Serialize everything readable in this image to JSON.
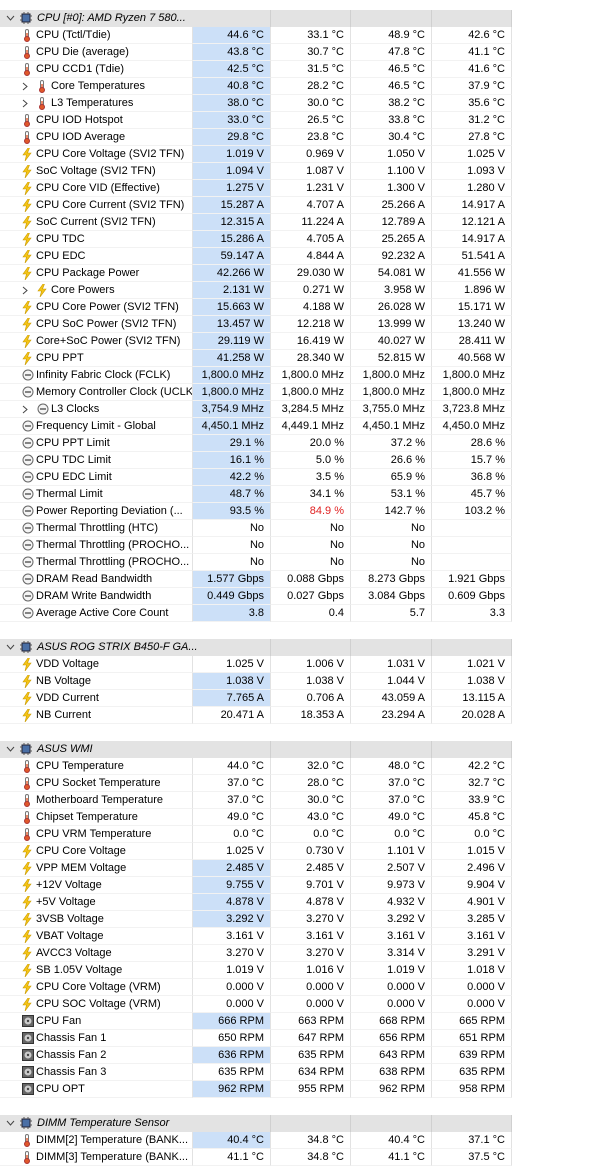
{
  "groups": [
    {
      "title": "CPU [#0]: AMD Ryzen 7 580...",
      "icon": "chip",
      "rows": [
        {
          "name": "CPU (Tctl/Tdie)",
          "icon": "temp",
          "values": [
            "44.6 °C",
            "33.1 °C",
            "48.9 °C",
            "42.6 °C"
          ],
          "selected": true
        },
        {
          "name": "CPU Die (average)",
          "icon": "temp",
          "values": [
            "43.8 °C",
            "30.7 °C",
            "47.8 °C",
            "41.1 °C"
          ],
          "selected": true
        },
        {
          "name": "CPU CCD1 (Tdie)",
          "icon": "temp",
          "values": [
            "42.5 °C",
            "31.5 °C",
            "46.5 °C",
            "41.6 °C"
          ],
          "selected": true
        },
        {
          "name": "Core Temperatures",
          "icon": "temp",
          "expandable": true,
          "values": [
            "40.8 °C",
            "28.2 °C",
            "46.5 °C",
            "37.9 °C"
          ],
          "selected": true
        },
        {
          "name": "L3 Temperatures",
          "icon": "temp",
          "expandable": true,
          "values": [
            "38.0 °C",
            "30.0 °C",
            "38.2 °C",
            "35.6 °C"
          ],
          "selected": true
        },
        {
          "name": "CPU IOD Hotspot",
          "icon": "temp",
          "values": [
            "33.0 °C",
            "26.5 °C",
            "33.8 °C",
            "31.2 °C"
          ],
          "selected": true
        },
        {
          "name": "CPU IOD Average",
          "icon": "temp",
          "values": [
            "29.8 °C",
            "23.8 °C",
            "30.4 °C",
            "27.8 °C"
          ],
          "selected": true
        },
        {
          "name": "CPU Core Voltage (SVI2 TFN)",
          "icon": "volt",
          "values": [
            "1.019 V",
            "0.969 V",
            "1.050 V",
            "1.025 V"
          ],
          "selected": true
        },
        {
          "name": "SoC Voltage (SVI2 TFN)",
          "icon": "volt",
          "values": [
            "1.094 V",
            "1.087 V",
            "1.100 V",
            "1.093 V"
          ],
          "selected": true
        },
        {
          "name": "CPU Core VID (Effective)",
          "icon": "volt",
          "values": [
            "1.275 V",
            "1.231 V",
            "1.300 V",
            "1.280 V"
          ],
          "selected": true
        },
        {
          "name": "CPU Core Current (SVI2 TFN)",
          "icon": "volt",
          "values": [
            "15.287 A",
            "4.707 A",
            "25.266 A",
            "14.917 A"
          ],
          "selected": true
        },
        {
          "name": "SoC Current (SVI2 TFN)",
          "icon": "volt",
          "values": [
            "12.315 A",
            "11.224 A",
            "12.789 A",
            "12.121 A"
          ],
          "selected": true
        },
        {
          "name": "CPU TDC",
          "icon": "volt",
          "values": [
            "15.286 A",
            "4.705 A",
            "25.265 A",
            "14.917 A"
          ],
          "selected": true
        },
        {
          "name": "CPU EDC",
          "icon": "volt",
          "values": [
            "59.147 A",
            "4.844 A",
            "92.232 A",
            "51.541 A"
          ],
          "selected": true
        },
        {
          "name": "CPU Package Power",
          "icon": "volt",
          "values": [
            "42.266 W",
            "29.030 W",
            "54.081 W",
            "41.556 W"
          ],
          "selected": true
        },
        {
          "name": "Core Powers",
          "icon": "volt",
          "expandable": true,
          "values": [
            "2.131 W",
            "0.271 W",
            "3.958 W",
            "1.896 W"
          ],
          "selected": true
        },
        {
          "name": "CPU Core Power (SVI2 TFN)",
          "icon": "volt",
          "values": [
            "15.663 W",
            "4.188 W",
            "26.028 W",
            "15.171 W"
          ],
          "selected": true
        },
        {
          "name": "CPU SoC Power (SVI2 TFN)",
          "icon": "volt",
          "values": [
            "13.457 W",
            "12.218 W",
            "13.999 W",
            "13.240 W"
          ],
          "selected": true
        },
        {
          "name": "Core+SoC Power (SVI2 TFN)",
          "icon": "volt",
          "values": [
            "29.119 W",
            "16.419 W",
            "40.027 W",
            "28.411 W"
          ],
          "selected": true
        },
        {
          "name": "CPU PPT",
          "icon": "volt",
          "values": [
            "41.258 W",
            "28.340 W",
            "52.815 W",
            "40.568 W"
          ],
          "selected": true
        },
        {
          "name": "Infinity Fabric Clock (FCLK)",
          "icon": "clock",
          "values": [
            "1,800.0 MHz",
            "1,800.0 MHz",
            "1,800.0 MHz",
            "1,800.0 MHz"
          ],
          "selected": true
        },
        {
          "name": "Memory Controller Clock (UCLK)",
          "icon": "clock",
          "values": [
            "1,800.0 MHz",
            "1,800.0 MHz",
            "1,800.0 MHz",
            "1,800.0 MHz"
          ],
          "selected": true
        },
        {
          "name": "L3 Clocks",
          "icon": "clock",
          "expandable": true,
          "values": [
            "3,754.9 MHz",
            "3,284.5 MHz",
            "3,755.0 MHz",
            "3,723.8 MHz"
          ],
          "selected": true
        },
        {
          "name": "Frequency Limit - Global",
          "icon": "clock",
          "values": [
            "4,450.1 MHz",
            "4,449.1 MHz",
            "4,450.1 MHz",
            "4,450.0 MHz"
          ],
          "selected": true
        },
        {
          "name": "CPU PPT Limit",
          "icon": "clock",
          "values": [
            "29.1 %",
            "20.0 %",
            "37.2 %",
            "28.6 %"
          ],
          "selected": true
        },
        {
          "name": "CPU TDC Limit",
          "icon": "clock",
          "values": [
            "16.1 %",
            "5.0 %",
            "26.6 %",
            "15.7 %"
          ],
          "selected": true
        },
        {
          "name": "CPU EDC Limit",
          "icon": "clock",
          "values": [
            "42.2 %",
            "3.5 %",
            "65.9 %",
            "36.8 %"
          ],
          "selected": true
        },
        {
          "name": "Thermal Limit",
          "icon": "clock",
          "values": [
            "48.7 %",
            "34.1 %",
            "53.1 %",
            "45.7 %"
          ],
          "selected": true
        },
        {
          "name": "Power Reporting Deviation (...",
          "icon": "clock",
          "values": [
            "93.5 %",
            "84.9 %",
            "142.7 %",
            "103.2 %"
          ],
          "value_colors": [
            null,
            "#e02020",
            null,
            null
          ],
          "selected": true
        },
        {
          "name": "Thermal Throttling (HTC)",
          "icon": "clock",
          "values": [
            "No",
            "No",
            "No"
          ]
        },
        {
          "name": "Thermal Throttling (PROCHO...",
          "icon": "clock",
          "values": [
            "No",
            "No",
            "No"
          ]
        },
        {
          "name": "Thermal Throttling (PROCHO...",
          "icon": "clock",
          "values": [
            "No",
            "No",
            "No"
          ]
        },
        {
          "name": "DRAM Read Bandwidth",
          "icon": "clock",
          "values": [
            "1.577 Gbps",
            "0.088 Gbps",
            "8.273 Gbps",
            "1.921 Gbps"
          ],
          "selected": true
        },
        {
          "name": "DRAM Write Bandwidth",
          "icon": "clock",
          "values": [
            "0.449 Gbps",
            "0.027 Gbps",
            "3.084 Gbps",
            "0.609 Gbps"
          ],
          "selected": true
        },
        {
          "name": "Average Active Core Count",
          "icon": "clock",
          "values": [
            "3.8",
            "0.4",
            "5.7",
            "3.3"
          ],
          "selected": true
        }
      ]
    },
    {
      "title": "ASUS ROG STRIX B450-F GA...",
      "icon": "chip",
      "rows": [
        {
          "name": "VDD Voltage",
          "icon": "volt",
          "values": [
            "1.025 V",
            "1.006 V",
            "1.031 V",
            "1.021 V"
          ]
        },
        {
          "name": "NB Voltage",
          "icon": "volt",
          "values": [
            "1.038 V",
            "1.038 V",
            "1.044 V",
            "1.038 V"
          ],
          "selected": true
        },
        {
          "name": "VDD Current",
          "icon": "volt",
          "values": [
            "7.765 A",
            "0.706 A",
            "43.059 A",
            "13.115 A"
          ],
          "selected": true
        },
        {
          "name": "NB Current",
          "icon": "volt",
          "values": [
            "20.471 A",
            "18.353 A",
            "23.294 A",
            "20.028 A"
          ]
        }
      ]
    },
    {
      "title": "ASUS WMI",
      "icon": "chip",
      "rows": [
        {
          "name": "CPU Temperature",
          "icon": "temp",
          "values": [
            "44.0 °C",
            "32.0 °C",
            "48.0 °C",
            "42.2 °C"
          ]
        },
        {
          "name": "CPU Socket Temperature",
          "icon": "temp",
          "values": [
            "37.0 °C",
            "28.0 °C",
            "37.0 °C",
            "32.7 °C"
          ]
        },
        {
          "name": "Motherboard Temperature",
          "icon": "temp",
          "values": [
            "37.0 °C",
            "30.0 °C",
            "37.0 °C",
            "33.9 °C"
          ]
        },
        {
          "name": "Chipset Temperature",
          "icon": "temp",
          "values": [
            "49.0 °C",
            "43.0 °C",
            "49.0 °C",
            "45.8 °C"
          ]
        },
        {
          "name": "CPU VRM Temperature",
          "icon": "temp",
          "values": [
            "0.0 °C",
            "0.0 °C",
            "0.0 °C",
            "0.0 °C"
          ]
        },
        {
          "name": "CPU Core Voltage",
          "icon": "volt",
          "values": [
            "1.025 V",
            "0.730 V",
            "1.101 V",
            "1.015 V"
          ]
        },
        {
          "name": "VPP MEM Voltage",
          "icon": "volt",
          "values": [
            "2.485 V",
            "2.485 V",
            "2.507 V",
            "2.496 V"
          ],
          "selected": true
        },
        {
          "name": "+12V Voltage",
          "icon": "volt",
          "values": [
            "9.755 V",
            "9.701 V",
            "9.973 V",
            "9.904 V"
          ],
          "selected": true
        },
        {
          "name": "+5V Voltage",
          "icon": "volt",
          "values": [
            "4.878 V",
            "4.878 V",
            "4.932 V",
            "4.901 V"
          ],
          "selected": true
        },
        {
          "name": "3VSB Voltage",
          "icon": "volt",
          "values": [
            "3.292 V",
            "3.270 V",
            "3.292 V",
            "3.285 V"
          ],
          "selected": true
        },
        {
          "name": "VBAT Voltage",
          "icon": "volt",
          "values": [
            "3.161 V",
            "3.161 V",
            "3.161 V",
            "3.161 V"
          ]
        },
        {
          "name": "AVCC3 Voltage",
          "icon": "volt",
          "values": [
            "3.270 V",
            "3.270 V",
            "3.314 V",
            "3.291 V"
          ]
        },
        {
          "name": "SB 1.05V Voltage",
          "icon": "volt",
          "values": [
            "1.019 V",
            "1.016 V",
            "1.019 V",
            "1.018 V"
          ]
        },
        {
          "name": "CPU Core Voltage (VRM)",
          "icon": "volt",
          "values": [
            "0.000 V",
            "0.000 V",
            "0.000 V",
            "0.000 V"
          ]
        },
        {
          "name": "CPU SOC Voltage (VRM)",
          "icon": "volt",
          "values": [
            "0.000 V",
            "0.000 V",
            "0.000 V",
            "0.000 V"
          ]
        },
        {
          "name": "CPU Fan",
          "icon": "fan",
          "values": [
            "666 RPM",
            "663 RPM",
            "668 RPM",
            "665 RPM"
          ],
          "selected": true
        },
        {
          "name": "Chassis Fan 1",
          "icon": "fan",
          "values": [
            "650 RPM",
            "647 RPM",
            "656 RPM",
            "651 RPM"
          ]
        },
        {
          "name": "Chassis Fan 2",
          "icon": "fan",
          "values": [
            "636 RPM",
            "635 RPM",
            "643 RPM",
            "639 RPM"
          ],
          "selected": true
        },
        {
          "name": "Chassis Fan 3",
          "icon": "fan",
          "values": [
            "635 RPM",
            "634 RPM",
            "638 RPM",
            "635 RPM"
          ]
        },
        {
          "name": "CPU OPT",
          "icon": "fan",
          "values": [
            "962 RPM",
            "955 RPM",
            "962 RPM",
            "958 RPM"
          ],
          "selected": true
        }
      ]
    },
    {
      "title": "DIMM Temperature Sensor",
      "icon": "chip",
      "rows": [
        {
          "name": "DIMM[2] Temperature (BANK...",
          "icon": "temp",
          "values": [
            "40.4 °C",
            "34.8 °C",
            "40.4 °C",
            "37.1 °C"
          ],
          "selected": true
        },
        {
          "name": "DIMM[3] Temperature (BANK...",
          "icon": "temp",
          "values": [
            "41.1 °C",
            "34.8 °C",
            "41.1 °C",
            "37.5 °C"
          ]
        }
      ]
    }
  ]
}
